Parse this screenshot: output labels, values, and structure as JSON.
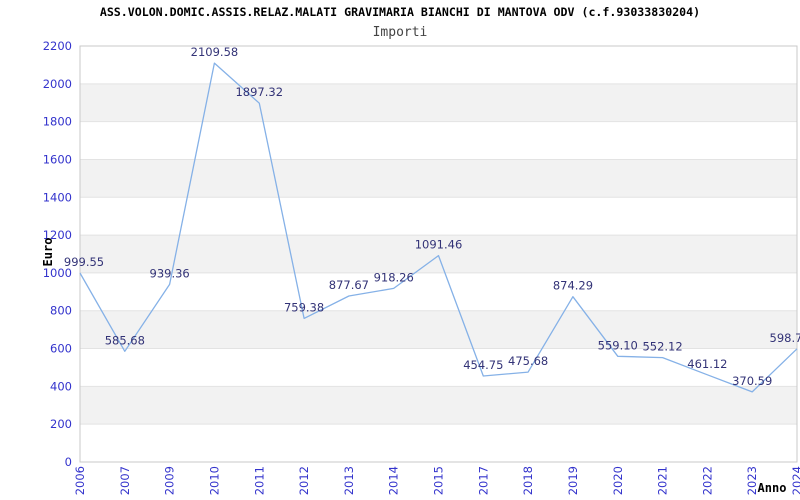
{
  "header": {
    "title": "ASS.VOLON.DOMIC.ASSIS.RELAZ.MALATI GRAVIMARIA BIANCHI DI MANTOVA ODV (c.f.93033830204)",
    "subtitle": "Importi"
  },
  "chart_data": {
    "type": "line",
    "title": "Importi",
    "xlabel": "Anno",
    "ylabel": "Euro",
    "categories": [
      "2006",
      "2007",
      "2009",
      "2010",
      "2011",
      "2012",
      "2013",
      "2014",
      "2015",
      "2017",
      "2018",
      "2019",
      "2020",
      "2021",
      "2022",
      "2023",
      "2024"
    ],
    "values": [
      999.55,
      585.68,
      939.36,
      2109.58,
      1897.32,
      759.38,
      877.67,
      918.26,
      1091.46,
      454.75,
      475.68,
      874.29,
      559.1,
      552.12,
      461.12,
      370.59,
      598.7
    ],
    "point_labels": [
      "999.55",
      "585.68",
      "939.36",
      "2109.58",
      "1897.32",
      "759.38",
      "877.67",
      "918.26",
      "1091.46",
      "454.75",
      "475.68",
      "874.29",
      "559.10",
      "552.12",
      "461.12",
      "370.59",
      "598.7"
    ],
    "ylim": [
      0,
      2200
    ],
    "ytick_step": 200,
    "grid": true,
    "band_fill": "alternating",
    "legend": "none",
    "colors": {
      "line": "#85b1e7",
      "point_label": "#333377",
      "tick_label": "#3333cc",
      "band_gray": "#f2f2f2",
      "band_white": "#ffffff",
      "gridline": "#e3e3e3",
      "plot_border": "#c9c9c9"
    }
  }
}
